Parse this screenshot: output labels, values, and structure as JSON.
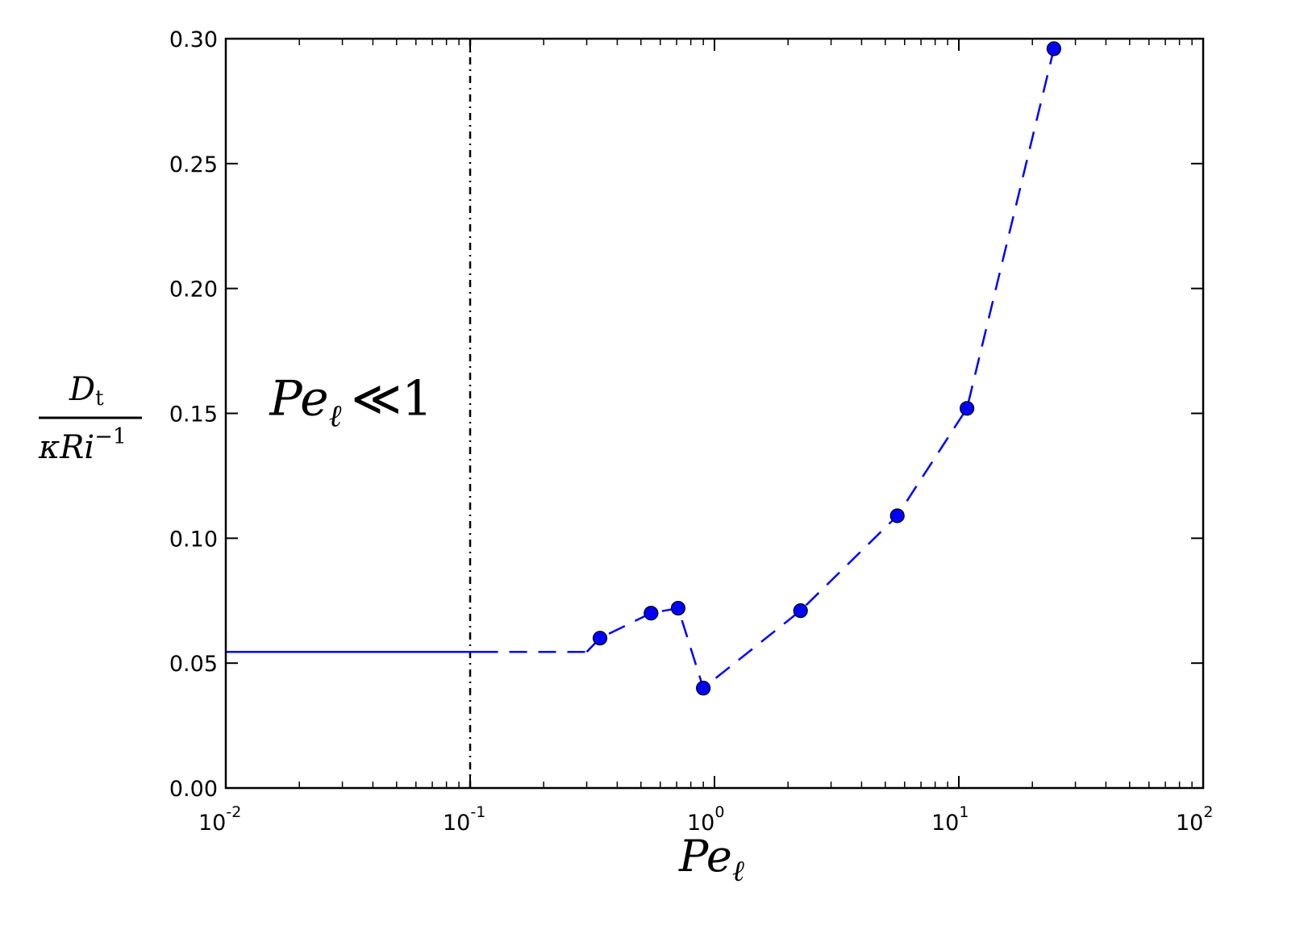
{
  "chart_data": {
    "type": "scatter",
    "xscale": "log",
    "xlim": [
      0.01,
      100
    ],
    "ylim": [
      0.0,
      0.3
    ],
    "grid": false,
    "x_ticks": [
      {
        "value": 0.01,
        "base": "10",
        "exp": "-2"
      },
      {
        "value": 0.1,
        "base": "10",
        "exp": "-1"
      },
      {
        "value": 1,
        "base": "10",
        "exp": "0"
      },
      {
        "value": 10,
        "base": "10",
        "exp": "1"
      },
      {
        "value": 100,
        "base": "10",
        "exp": "2"
      }
    ],
    "y_ticks": [
      "0.00",
      "0.05",
      "0.10",
      "0.15",
      "0.20",
      "0.25",
      "0.30"
    ],
    "xlabel": {
      "main": "Pe",
      "sub": "ℓ"
    },
    "ylabel": {
      "num_main": "D",
      "num_sub": "t",
      "den_main": "κRi",
      "den_sup": "−1"
    },
    "annotation": {
      "main": "Pe",
      "sub": "ℓ",
      "rest": "≪1",
      "x": 0.0105,
      "y": 0.15
    },
    "points": {
      "x": [
        0.34,
        0.55,
        0.71,
        0.9,
        2.25,
        5.6,
        10.8,
        24.5
      ],
      "y": [
        0.06,
        0.07,
        0.072,
        0.04,
        0.071,
        0.109,
        0.152,
        0.296
      ]
    },
    "asymptote": {
      "y": 0.0545,
      "solid_x": [
        0.01,
        0.11
      ],
      "dashed_x": [
        0.11,
        0.3
      ]
    },
    "vline_x": 0.1,
    "colors": {
      "points": "#0000ff",
      "line": "#0000ff",
      "vline": "#000000",
      "axes": "#000000"
    }
  }
}
